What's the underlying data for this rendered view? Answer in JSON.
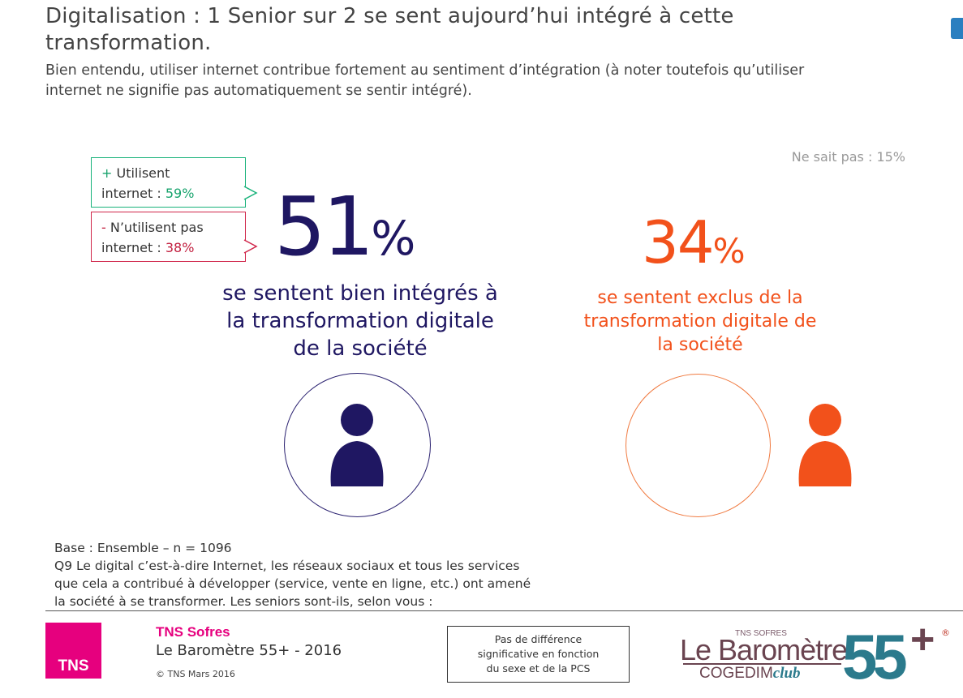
{
  "header": {
    "title_line1": "Digitalisation : 1 Senior sur 2 se sent aujourd’hui intégré à cette",
    "title_line2": "transformation.",
    "subtitle_line1": "Bien entendu, utiliser internet contribue fortement au sentiment d’intégration (à noter toutefois qu’utiliser",
    "subtitle_line2": "internet ne signifie pas automatiquement se sentir intégré)."
  },
  "ne_sait_pas": "Ne sait pas : 15%",
  "callouts": {
    "users": {
      "sign": "+",
      "label_line1": "Utilisent",
      "label_line2": "internet :",
      "value": "59%"
    },
    "non_users": {
      "sign": "-",
      "label_line1": "N’utilisent pas",
      "label_line2": "internet :",
      "value": "38%"
    }
  },
  "integrated": {
    "number": "51",
    "symbol": "%",
    "desc_line1": "se sentent bien intégrés à",
    "desc_line2": "la transformation digitale",
    "desc_line3": "de la société"
  },
  "excluded": {
    "number": "34",
    "symbol": "%",
    "desc_line1": "se sentent exclus de la",
    "desc_line2": "transformation digitale de",
    "desc_line3": "la société"
  },
  "base": {
    "line1": "Base : Ensemble – n = 1096",
    "line2": "Q9 Le digital c’est-à-dire Internet, les réseaux sociaux et tous les services",
    "line3": "que cela a contribué à développer (service, vente en ligne, etc.) ont amené",
    "line4": "la société à se transformer. Les seniors sont-ils, selon vous :"
  },
  "footer": {
    "tns_logo": "TNS",
    "tns_name": "TNS Sofres",
    "barometre": "Le Baromètre 55+ - 2016",
    "copyright": "© TNS Mars 2016",
    "note_line1": "Pas de différence",
    "note_line2": "significative en fonction",
    "note_line3": "du sexe et de la PCS",
    "brand_tns": "TNS SOFRES",
    "brand_baro": "Le Baromètre",
    "brand_cogedim": "COGEDIM",
    "brand_club": "club",
    "brand_55": "55",
    "brand_plus": "+",
    "brand_reg": "®"
  },
  "colors": {
    "integrated": "#1f1762",
    "excluded": "#f2511b",
    "users_green": "#18a36d",
    "non_users_red": "#c21f3f",
    "tns_pink": "#e6007e",
    "brand_teal": "#2b7a8c"
  },
  "icons": {
    "integrated_person": "person-icon",
    "excluded_person": "person-icon"
  }
}
